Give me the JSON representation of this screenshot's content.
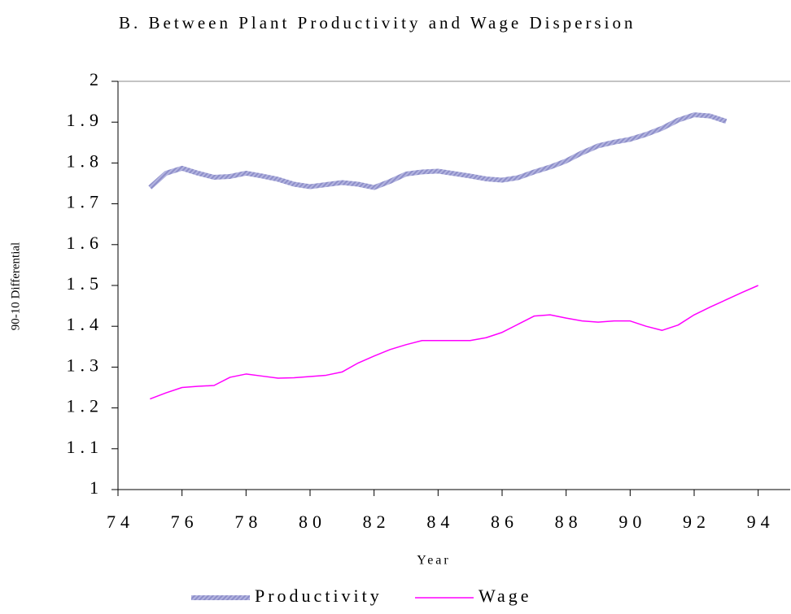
{
  "chart_data": {
    "type": "line",
    "title": "B. Between Plant Productivity and Wage Dispersion",
    "x_label": "Year",
    "y_label": "90-10 Differential",
    "x": [
      75,
      75.5,
      76,
      76.5,
      77,
      77.5,
      78,
      78.5,
      79,
      79.5,
      80,
      80.5,
      81,
      81.5,
      82,
      82.5,
      83,
      83.5,
      84,
      84.5,
      85,
      85.5,
      86,
      86.5,
      87,
      87.5,
      88,
      88.5,
      89,
      89.5,
      90,
      90.5,
      91,
      91.5,
      92,
      92.5,
      93,
      93.5,
      94
    ],
    "series": [
      {
        "name": "Productivity",
        "color": "#8e8fc9",
        "values": [
          1.74,
          1.775,
          1.787,
          1.775,
          1.765,
          1.767,
          1.775,
          1.768,
          1.76,
          1.748,
          1.742,
          1.747,
          1.752,
          1.748,
          1.74,
          1.755,
          1.773,
          1.778,
          1.78,
          1.774,
          1.768,
          1.761,
          1.758,
          1.764,
          1.778,
          1.79,
          1.805,
          1.825,
          1.842,
          1.851,
          1.858,
          1.87,
          1.885,
          1.905,
          1.918,
          1.915,
          1.902,
          null,
          null
        ]
      },
      {
        "name": "Wage",
        "color": "#ff00ff",
        "values": [
          1.222,
          1.237,
          1.25,
          1.253,
          1.255,
          1.275,
          1.283,
          1.278,
          1.273,
          1.274,
          1.277,
          1.28,
          1.288,
          1.31,
          1.327,
          1.343,
          1.355,
          1.365,
          1.365,
          1.365,
          1.365,
          1.372,
          1.385,
          1.405,
          1.425,
          1.428,
          1.42,
          1.413,
          1.41,
          1.413,
          1.413,
          1.4,
          1.39,
          1.403,
          1.428,
          1.447,
          1.465,
          1.483,
          1.5
        ]
      }
    ],
    "xlim": [
      74,
      95
    ],
    "xticks": [
      74,
      76,
      78,
      80,
      82,
      84,
      86,
      88,
      90,
      92,
      94
    ],
    "ylim": [
      1,
      2
    ],
    "yticks": [
      1,
      1.1,
      1.2,
      1.3,
      1.4,
      1.5,
      1.6,
      1.7,
      1.8,
      1.9,
      2
    ]
  }
}
